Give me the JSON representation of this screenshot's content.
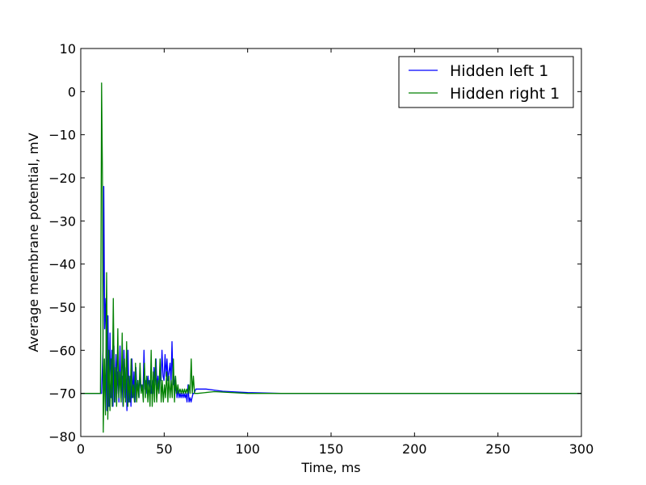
{
  "chart_data": {
    "type": "line",
    "title": "",
    "xlabel": "Time, ms",
    "ylabel": "Average membrane potential, mV",
    "xlim": [
      0,
      300
    ],
    "ylim": [
      -80,
      10
    ],
    "xticks": [
      "0",
      "50",
      "100",
      "150",
      "200",
      "250",
      "300"
    ],
    "yticks": [
      "10",
      "0",
      "−10",
      "−20",
      "−30",
      "−40",
      "−50",
      "−60",
      "−70",
      "−80"
    ],
    "grid": false,
    "legend_position": "top-right",
    "series": [
      {
        "name": "Hidden left 1",
        "color": "#0000ff",
        "x": [
          0,
          11.5,
          12.5,
          13.3,
          13.8,
          14.3,
          15,
          15.7,
          16.3,
          16.9,
          17.5,
          18.1,
          18.7,
          19.3,
          19.9,
          20.5,
          21.1,
          21.7,
          22.3,
          22.9,
          23.5,
          24.1,
          24.7,
          25.3,
          25.9,
          26.5,
          27.1,
          27.7,
          28.3,
          28.9,
          29.5,
          30.1,
          30.7,
          31.3,
          31.9,
          32.5,
          33.1,
          33.7,
          34.3,
          34.9,
          35.5,
          36.1,
          36.7,
          37.3,
          37.9,
          38.5,
          39.1,
          39.7,
          40.3,
          40.9,
          41.5,
          42.1,
          42.7,
          43.3,
          43.9,
          44.5,
          45.1,
          45.7,
          46.3,
          46.9,
          47.5,
          48.1,
          48.7,
          49.3,
          49.9,
          50.5,
          51.1,
          51.7,
          52.3,
          52.9,
          53.5,
          54.1,
          54.7,
          55.3,
          55.9,
          56.5,
          57.1,
          57.7,
          58.3,
          58.9,
          59.5,
          60.1,
          60.7,
          61.3,
          61.9,
          62.5,
          63.1,
          63.7,
          64.3,
          64.9,
          65.5,
          66.1,
          66.7,
          67.3,
          67.9,
          69,
          75,
          85,
          100,
          120,
          150,
          200,
          250,
          300
        ],
        "y": [
          -70,
          -70,
          -70,
          -60,
          -22,
          -55,
          -48,
          -74,
          -52,
          -73,
          -56,
          -71,
          -60,
          -73,
          -59,
          -72,
          -61,
          -70,
          -65,
          -72,
          -59,
          -71,
          -66,
          -73,
          -60,
          -71,
          -64,
          -74,
          -60,
          -72,
          -66,
          -73,
          -62,
          -71,
          -65,
          -72,
          -64,
          -70,
          -67,
          -71,
          -66,
          -69,
          -68,
          -70,
          -60,
          -69,
          -67,
          -70,
          -66,
          -69,
          -67,
          -70,
          -67,
          -70,
          -64,
          -68,
          -62,
          -69,
          -66,
          -70,
          -65,
          -67,
          -60,
          -66,
          -67,
          -61,
          -66,
          -62,
          -67,
          -65,
          -63,
          -68,
          -58,
          -68,
          -66,
          -70,
          -68,
          -71,
          -69,
          -71,
          -70,
          -71,
          -70,
          -71,
          -70,
          -71,
          -70,
          -72,
          -68,
          -72,
          -71,
          -72,
          -71,
          -70,
          -70,
          -69,
          -69,
          -69.5,
          -69.8,
          -70,
          -70,
          -70,
          -70,
          -70
        ]
      },
      {
        "name": "Hidden right 1",
        "color": "#008000",
        "x": [
          0,
          11.8,
          12.5,
          13,
          13.5,
          14.2,
          14.8,
          15.5,
          16.2,
          16.8,
          17.5,
          18.2,
          18.8,
          19.5,
          20.2,
          20.8,
          21.5,
          22.2,
          22.8,
          23.5,
          24.2,
          24.8,
          25.5,
          26.2,
          26.8,
          27.5,
          28.2,
          28.8,
          29.5,
          30.2,
          30.8,
          31.5,
          32.2,
          32.8,
          33.5,
          34.2,
          34.8,
          35.5,
          36.2,
          36.8,
          37.5,
          38.2,
          38.8,
          39.5,
          40.2,
          40.8,
          41.5,
          42.2,
          42.8,
          43.5,
          44.2,
          44.8,
          45.5,
          46.2,
          46.8,
          47.5,
          48.2,
          48.8,
          49.5,
          50.2,
          50.8,
          51.5,
          52.2,
          52.8,
          53.5,
          54.2,
          54.8,
          55.5,
          56.2,
          56.8,
          57.5,
          58.2,
          58.8,
          59.5,
          60.2,
          60.8,
          61.5,
          62.2,
          62.8,
          63.5,
          64.2,
          64.8,
          65.5,
          66.2,
          66.8,
          67.5,
          68.2,
          70,
          80,
          100,
          130,
          170,
          220,
          300
        ],
        "y": [
          -70,
          -70,
          2,
          -20,
          -79,
          -62,
          -75,
          -42,
          -76,
          -60,
          -74,
          -62,
          -73,
          -48,
          -72,
          -64,
          -73,
          -55,
          -71,
          -65,
          -72,
          -56,
          -73,
          -62,
          -72,
          -58,
          -73,
          -66,
          -72,
          -62,
          -71,
          -68,
          -72,
          -63,
          -72,
          -67,
          -71,
          -63,
          -70,
          -68,
          -72,
          -63,
          -71,
          -66,
          -72,
          -67,
          -73,
          -60,
          -73,
          -65,
          -72,
          -62,
          -72,
          -67,
          -70,
          -62,
          -72,
          -67,
          -72,
          -68,
          -71,
          -65,
          -72,
          -66,
          -71,
          -67,
          -71,
          -62,
          -72,
          -66,
          -70,
          -68,
          -70,
          -69,
          -70,
          -69,
          -70,
          -69,
          -70,
          -69,
          -70,
          -68,
          -70,
          -62,
          -70,
          -66,
          -70,
          -70,
          -69.6,
          -70,
          -70,
          -70,
          -70,
          -70
        ]
      }
    ]
  }
}
